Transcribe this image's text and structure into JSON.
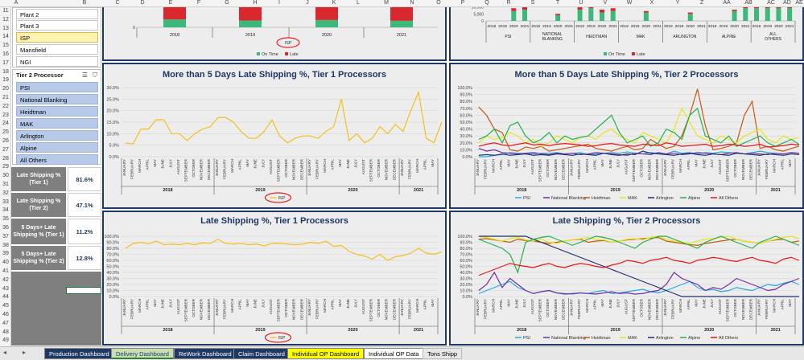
{
  "column_headers": [
    "A",
    "B",
    "C",
    "D",
    "E",
    "F",
    "G",
    "H",
    "I",
    "J",
    "K",
    "L",
    "M",
    "N",
    "O",
    "P",
    "Q",
    "R",
    "S",
    "T",
    "U",
    "V",
    "W",
    "X",
    "Y",
    "Z",
    "AA",
    "AB",
    "AC",
    "AD",
    "AE"
  ],
  "row_headers": [
    "11",
    "12",
    "13",
    "14",
    "15",
    "16",
    "17",
    "18",
    "19",
    "20",
    "21",
    "22",
    "23",
    "24",
    "25",
    "26",
    "27",
    "28",
    "29",
    "30",
    "31",
    "32",
    "33",
    "34",
    "35",
    "36",
    "37",
    "38",
    "39",
    "40",
    "41",
    "42",
    "43",
    "44",
    "45",
    "46",
    "47",
    "48",
    "49"
  ],
  "plant_slicer": {
    "items": [
      "Plant 2",
      "Plant 3",
      "ISP",
      "Mansfield",
      "NGI"
    ],
    "selected": "ISP"
  },
  "tier2_slicer": {
    "title": "Tier 2 Processor",
    "items": [
      "PSI",
      "National Blanking",
      "Heidtman",
      "MAK",
      "Arlington",
      "Alpine",
      "All Others"
    ]
  },
  "kpis": [
    {
      "label": "Late Shipping % (Tier 1)",
      "value": "81.6%"
    },
    {
      "label": "Late Shipping % (Tier 2)",
      "value": "47.1%"
    },
    {
      "label": "5 Days+ Late Shipping % (Tier 1)",
      "value": "11.2%"
    },
    {
      "label": "5 Days+ Late Shipping % (Tier 2)",
      "value": "12.8%"
    }
  ],
  "colors": {
    "on_time": "#3cb878",
    "late": "#d9272e",
    "isp_line": "#f4c01c",
    "panel_border": "#1f3864",
    "title": "#1f3864",
    "annotation": "#e0201b",
    "tier2_series": {
      "PSI": "#29a8e0",
      "National Blanking": "#7030a0",
      "Heidtman": "#c55a11",
      "MAK": "#e6e619",
      "Arlington": "#1f2f6e",
      "Alpine": "#22b14c",
      "All Others": "#e8171a"
    }
  },
  "month_labels": [
    "JANUARY",
    "FEBRUARY",
    "MARCH",
    "APRIL",
    "MAY",
    "JUNE",
    "JULY",
    "AUGUST",
    "SEPTEMBER",
    "OCTOBER",
    "NOVEMBER",
    "DECEMBER"
  ],
  "partial_month_labels": [
    "JANUARY",
    "FEBRUARY",
    "MARCH",
    "APRIL",
    "MAY"
  ],
  "year_labels": [
    "2018",
    "2019",
    "2020",
    "2021"
  ],
  "chart_data": [
    {
      "type": "bar",
      "title": "",
      "subset": "top-left volume chart (partially visible)",
      "categories": [
        "2018",
        "2019",
        "2020",
        "2021"
      ],
      "series": [
        {
          "name": "On Time",
          "values": [
            3000,
            2600,
            2800,
            2500
          ]
        },
        {
          "name": "Late",
          "values": [
            9000,
            9600,
            9000,
            10000
          ]
        }
      ],
      "y_ticks": [
        "0",
        "10,000"
      ],
      "legend_position": "bottom",
      "legend": [
        "On Time",
        "Late"
      ],
      "filter_label": "ISP"
    },
    {
      "type": "bar",
      "title": "",
      "subset": "top-right volume chart by Tier 2 processor (partially visible)",
      "y_ticks": [
        "0",
        "5,000",
        "10,000"
      ],
      "groups": [
        "PSI",
        "NATIONAL BLANKING",
        "HEIDTMAN",
        "MAK",
        "ARLINGTON",
        "ALPINE",
        "ALL OTHERS"
      ],
      "years": [
        "2018",
        "2019",
        "2020",
        "2021"
      ],
      "series": [
        {
          "name": "On Time",
          "values": [
            [
              0,
              0,
              7000,
              8000
            ],
            [
              0,
              0,
              4000,
              0
            ],
            [
              8000,
              9000,
              6000,
              7000
            ],
            [
              0,
              0,
              6000,
              0
            ],
            [
              0,
              0,
              5000,
              0
            ],
            [
              0,
              0,
              7000,
              9000
            ],
            [
              9000,
              9000,
              9000,
              9000
            ]
          ]
        },
        {
          "name": "Late",
          "values": [
            [
              0,
              0,
              2000,
              2000
            ],
            [
              0,
              0,
              1000,
              0
            ],
            [
              3000,
              3000,
              2000,
              2000
            ],
            [
              0,
              0,
              1000,
              0
            ],
            [
              0,
              0,
              1000,
              0
            ],
            [
              0,
              0,
              1000,
              1000
            ],
            [
              2000,
              2000,
              2000,
              2000
            ]
          ]
        }
      ],
      "legend_position": "bottom",
      "legend": [
        "On Time",
        "Late"
      ]
    },
    {
      "type": "line",
      "title": "More than 5 Days Late Shipping %, Tier 1 Processors",
      "ylim": [
        0,
        30
      ],
      "y_ticks": [
        "0.0%",
        "5.0%",
        "10.0%",
        "15.0%",
        "20.0%",
        "25.0%",
        "30.0%"
      ],
      "legend_position": "bottom",
      "series": [
        {
          "name": "ISP",
          "values": [
            6,
            5.5,
            12,
            12,
            16,
            16,
            10,
            10,
            7,
            10,
            12,
            13,
            17,
            17,
            15,
            11,
            8,
            8,
            11,
            16,
            9,
            6,
            8,
            9,
            9,
            8,
            11,
            13,
            25,
            7,
            10,
            6,
            8,
            13,
            10,
            14,
            11,
            20,
            28,
            8,
            6,
            15
          ]
        }
      ]
    },
    {
      "type": "line",
      "title": "More than 5 Days Late Shipping %, Tier 2 Processors",
      "ylim": [
        0,
        100
      ],
      "y_ticks": [
        "0.0%",
        "10.0%",
        "20.0%",
        "30.0%",
        "40.0%",
        "50.0%",
        "60.0%",
        "70.0%",
        "80.0%",
        "90.0%",
        "100.0%"
      ],
      "legend_position": "bottom",
      "series": [
        {
          "name": "PSI",
          "values": [
            0,
            0,
            2,
            3,
            6,
            5,
            4,
            4,
            5,
            5,
            6,
            4,
            5,
            6,
            3,
            4,
            5,
            6,
            5,
            7,
            5,
            4,
            6,
            5,
            4,
            8,
            5,
            6,
            4,
            6,
            5,
            7,
            6,
            5,
            4,
            6,
            8,
            6,
            5,
            4,
            6,
            5
          ]
        },
        {
          "name": "National Blanking",
          "values": [
            12,
            8,
            10,
            6,
            5,
            4,
            5,
            6,
            4,
            3,
            5,
            4,
            5,
            3,
            4,
            6,
            5,
            4,
            3,
            2,
            5,
            4,
            3,
            6,
            4,
            5,
            3,
            4,
            6,
            5,
            4,
            3,
            5,
            6,
            4,
            5,
            4,
            3,
            5,
            4,
            6,
            5
          ]
        },
        {
          "name": "Heidtman",
          "values": [
            72,
            60,
            40,
            35,
            10,
            8,
            14,
            12,
            15,
            8,
            10,
            12,
            14,
            16,
            18,
            12,
            10,
            8,
            12,
            15,
            10,
            12,
            25,
            18,
            12,
            15,
            30,
            60,
            98,
            45,
            10,
            12,
            15,
            20,
            60,
            80,
            12,
            15,
            10,
            8,
            12,
            15
          ]
        },
        {
          "name": "MAK",
          "values": [
            20,
            30,
            25,
            28,
            35,
            30,
            20,
            25,
            15,
            20,
            30,
            25,
            20,
            28,
            30,
            25,
            35,
            40,
            30,
            25,
            20,
            35,
            30,
            25,
            20,
            40,
            70,
            50,
            30,
            25,
            20,
            30,
            25,
            20,
            30,
            35,
            40,
            25,
            20,
            30,
            25,
            28
          ]
        },
        {
          "name": "Arlington",
          "values": [
            2,
            3,
            2,
            4,
            2,
            3,
            4,
            2,
            3,
            2,
            4,
            3,
            2,
            4,
            3,
            2,
            5,
            3,
            2,
            4,
            3,
            8,
            5,
            4,
            3,
            2,
            4,
            5,
            3,
            2,
            4,
            3,
            2,
            5,
            4,
            3,
            2,
            4,
            3,
            2,
            4,
            3
          ]
        },
        {
          "name": "Alpine",
          "values": [
            25,
            30,
            40,
            20,
            45,
            50,
            30,
            20,
            25,
            35,
            20,
            30,
            25,
            28,
            30,
            40,
            50,
            60,
            35,
            20,
            25,
            30,
            15,
            20,
            40,
            35,
            25,
            60,
            70,
            30,
            25,
            20,
            30,
            15,
            20,
            25,
            30,
            20,
            15,
            20,
            25,
            18
          ]
        },
        {
          "name": "All Others",
          "values": [
            15,
            18,
            20,
            17,
            16,
            18,
            20,
            17,
            18,
            16,
            18,
            19,
            18,
            17,
            15,
            16,
            18,
            19,
            17,
            16,
            15,
            18,
            17,
            16,
            20,
            18,
            15,
            16,
            17,
            18,
            15,
            16,
            18,
            17,
            15,
            16,
            18,
            14,
            15,
            16,
            18,
            17
          ]
        }
      ]
    },
    {
      "type": "line",
      "title": "Late Shipping %, Tier 1 Processors",
      "ylim": [
        0,
        100
      ],
      "y_ticks": [
        "0.0%",
        "10.0%",
        "20.0%",
        "30.0%",
        "40.0%",
        "50.0%",
        "60.0%",
        "70.0%",
        "80.0%",
        "90.0%",
        "100.0%"
      ],
      "legend_position": "bottom",
      "series": [
        {
          "name": "ISP",
          "values": [
            80,
            88,
            90,
            87,
            92,
            86,
            87,
            86,
            88,
            86,
            89,
            88,
            95,
            88,
            87,
            88,
            86,
            87,
            84,
            88,
            88,
            87,
            86,
            87,
            90,
            88,
            92,
            83,
            85,
            75,
            70,
            67,
            62,
            70,
            60,
            66,
            68,
            72,
            80,
            72,
            70,
            74
          ]
        }
      ]
    },
    {
      "type": "line",
      "title": "Late Shipping %, Tier 2 Processors",
      "ylim": [
        0,
        100
      ],
      "y_ticks": [
        "0.0%",
        "10.0%",
        "20.0%",
        "30.0%",
        "40.0%",
        "50.0%",
        "60.0%",
        "70.0%",
        "80.0%",
        "90.0%",
        "100.0%"
      ],
      "legend_position": "bottom",
      "series": [
        {
          "name": "PSI",
          "values": [
            5,
            10,
            15,
            20,
            25,
            15,
            10,
            5,
            8,
            10,
            6,
            5,
            4,
            6,
            5,
            8,
            10,
            5,
            6,
            8,
            10,
            12,
            8,
            6,
            10,
            15,
            20,
            25,
            15,
            10,
            12,
            8,
            10,
            15,
            12,
            10,
            15,
            20,
            18,
            22,
            25,
            20
          ]
        },
        {
          "name": "National Blanking",
          "values": [
            10,
            20,
            40,
            15,
            30,
            20,
            10,
            5,
            8,
            10,
            6,
            4,
            5,
            6,
            5,
            4,
            6,
            8,
            5,
            6,
            4,
            5,
            8,
            10,
            20,
            40,
            30,
            25,
            20,
            10,
            15,
            12,
            20,
            30,
            25,
            20,
            15,
            10,
            12,
            20,
            25,
            30
          ]
        },
        {
          "name": "Heidtman",
          "values": [
            95,
            96,
            94,
            92,
            90,
            95,
            93,
            92,
            90,
            88,
            90,
            92,
            94,
            95,
            90,
            92,
            93,
            90,
            92,
            94,
            95,
            96,
            97,
            98,
            92,
            90,
            88,
            86,
            85,
            88,
            90,
            92,
            94,
            95,
            92,
            90,
            88,
            92,
            94,
            95,
            90,
            92
          ]
        },
        {
          "name": "MAK",
          "values": [
            100,
            98,
            95,
            92,
            96,
            98,
            94,
            92,
            95,
            90,
            88,
            92,
            94,
            96,
            98,
            95,
            94,
            90,
            92,
            95,
            96,
            94,
            98,
            100,
            95,
            92,
            90,
            88,
            92,
            95,
            96,
            98,
            100,
            95,
            92,
            90,
            88,
            92,
            95,
            98,
            100,
            96
          ]
        },
        {
          "name": "Arlington",
          "values": [
            100,
            100,
            100,
            100,
            100,
            100,
            100,
            95,
            90,
            85,
            80,
            75,
            70,
            65,
            60,
            55,
            50,
            45,
            40,
            35,
            30,
            25,
            20,
            15,
            10,
            5,
            0,
            0,
            0,
            0,
            0,
            0,
            0,
            0,
            0,
            0,
            0,
            0,
            0,
            0,
            0,
            0
          ]
        },
        {
          "name": "Alpine",
          "values": [
            95,
            90,
            85,
            80,
            70,
            40,
            90,
            95,
            98,
            100,
            95,
            90,
            85,
            90,
            95,
            100,
            98,
            95,
            90,
            85,
            80,
            90,
            95,
            100,
            100,
            95,
            90,
            85,
            80,
            90,
            95,
            100,
            95,
            90,
            85,
            80,
            90,
            95,
            100,
            95,
            90,
            85
          ]
        },
        {
          "name": "All Others",
          "values": [
            35,
            40,
            45,
            50,
            55,
            52,
            50,
            48,
            52,
            55,
            50,
            48,
            52,
            55,
            53,
            50,
            48,
            52,
            55,
            60,
            58,
            55,
            60,
            62,
            65,
            60,
            58,
            55,
            60,
            62,
            65,
            63,
            60,
            58,
            62,
            65,
            60,
            58,
            55,
            62,
            65,
            60
          ]
        }
      ]
    }
  ],
  "tabs": [
    {
      "label": "Production Dashboard"
    },
    {
      "label": "Delivery Dashboard"
    },
    {
      "label": "ReWork Dashboard"
    },
    {
      "label": "Claim Dashboard"
    },
    {
      "label": "Individual OP Dashboard"
    },
    {
      "label": "Individual OP Data"
    },
    {
      "label": "Tons Shipp"
    }
  ]
}
